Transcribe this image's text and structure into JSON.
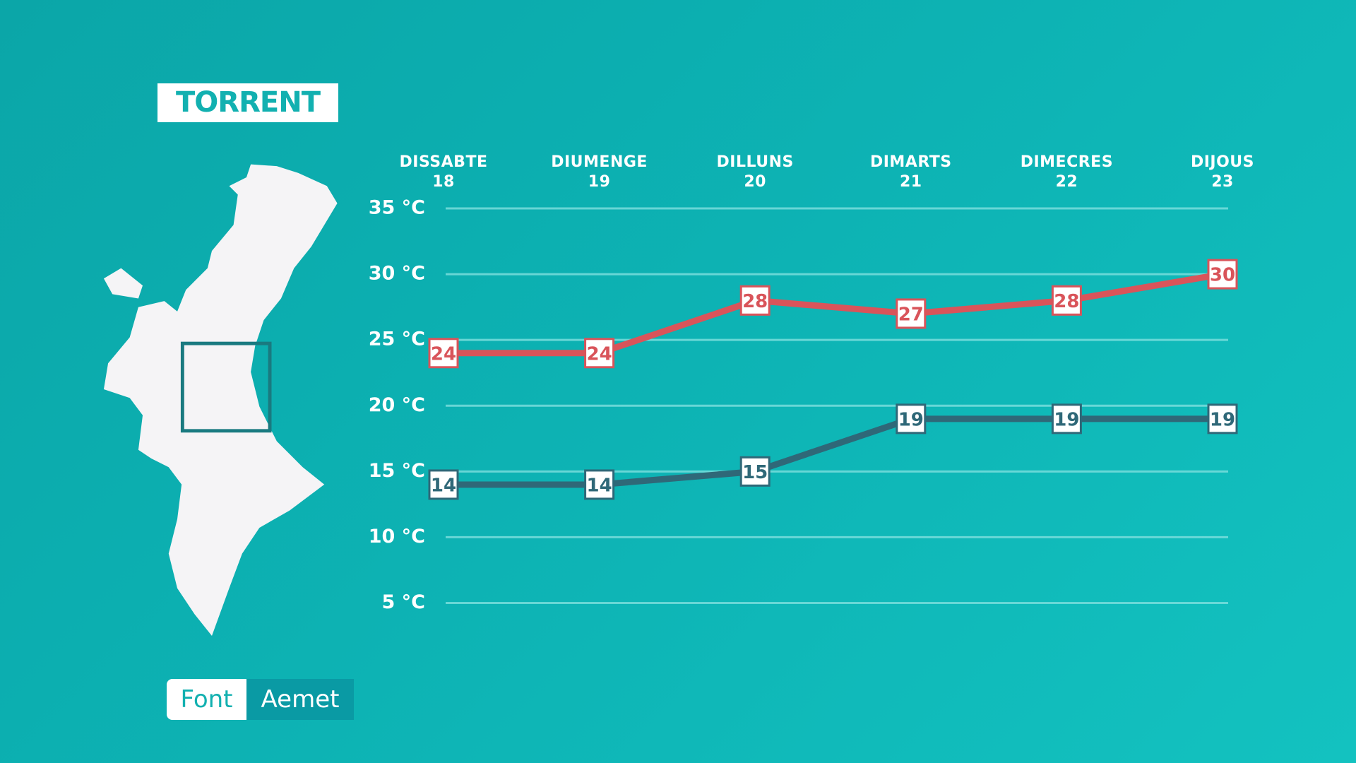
{
  "title": "TORRENT",
  "source": {
    "label": "Font",
    "name": "Aemet"
  },
  "chart_data": {
    "type": "line",
    "categories": [
      "DISSABTE\n18",
      "DIUMENGE\n19",
      "DILLUNS\n20",
      "DIMARTS\n21",
      "DIMECRES\n22",
      "DIJOUS\n23"
    ],
    "series": [
      {
        "color": "#d9545a",
        "values": [
          24,
          24,
          28,
          27,
          28,
          30
        ]
      },
      {
        "color": "#2f6878",
        "values": [
          14,
          14,
          15,
          19,
          19,
          19
        ]
      }
    ],
    "ylim": [
      5,
      35
    ],
    "yticks": [
      {
        "value": 5,
        "label": "5 °C"
      },
      {
        "value": 10,
        "label": "10 °C"
      },
      {
        "value": 15,
        "label": "15 °C"
      },
      {
        "value": 20,
        "label": "20 °C"
      },
      {
        "value": 25,
        "label": "25 °C"
      },
      {
        "value": 30,
        "label": "30 °C"
      },
      {
        "value": 35,
        "label": "35 °C"
      }
    ],
    "grid": true
  }
}
